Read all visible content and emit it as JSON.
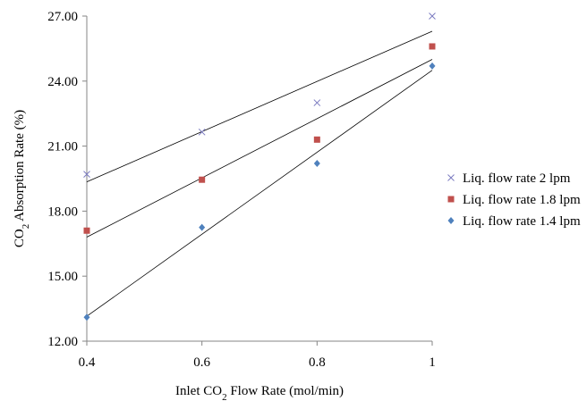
{
  "chart_data": {
    "type": "scatter",
    "xlabel": {
      "pre": "Inlet CO",
      "sub": "2",
      "post": " Flow Rate (mol/min)"
    },
    "ylabel": {
      "pre": "CO",
      "sub": "2",
      "post": " Absorption Rate (%)"
    },
    "xlim": [
      0.4,
      1.0
    ],
    "ylim": [
      12.0,
      27.0
    ],
    "x_ticks": [
      "0.4",
      "0.6",
      "0.8",
      "1"
    ],
    "x_tick_values": [
      0.4,
      0.6,
      0.8,
      1.0
    ],
    "y_ticks": [
      "12.00",
      "15.00",
      "18.00",
      "21.00",
      "24.00",
      "27.00"
    ],
    "y_tick_values": [
      12,
      15,
      18,
      21,
      24,
      27
    ],
    "grid": false,
    "legend_position": "right",
    "series": [
      {
        "name": "Liq. flow rate 2 lpm",
        "marker": "x",
        "color": "#7b7bc0",
        "x": [
          0.4,
          0.6,
          0.8,
          1.0
        ],
        "y": [
          19.7,
          21.65,
          23.0,
          27.0
        ],
        "trendline": [
          19.35,
          26.3
        ]
      },
      {
        "name": "Liq. flow rate 1.8 lpm",
        "marker": "square",
        "color": "#c0504d",
        "x": [
          0.4,
          0.6,
          0.8,
          1.0
        ],
        "y": [
          17.1,
          19.45,
          21.3,
          25.6
        ],
        "trendline": [
          16.8,
          25.0
        ]
      },
      {
        "name": "Liq. flow rate 1.4 lpm",
        "marker": "diamond",
        "color": "#4f81bd",
        "x": [
          0.4,
          0.6,
          0.8,
          1.0
        ],
        "y": [
          13.1,
          17.25,
          20.2,
          24.7
        ],
        "trendline": [
          13.15,
          24.5
        ]
      }
    ]
  }
}
